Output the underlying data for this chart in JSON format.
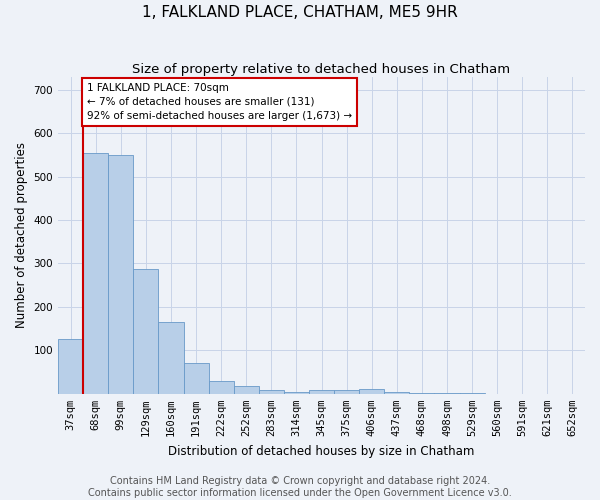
{
  "title": "1, FALKLAND PLACE, CHATHAM, ME5 9HR",
  "subtitle": "Size of property relative to detached houses in Chatham",
  "xlabel": "Distribution of detached houses by size in Chatham",
  "ylabel": "Number of detached properties",
  "categories": [
    "37sqm",
    "68sqm",
    "99sqm",
    "129sqm",
    "160sqm",
    "191sqm",
    "222sqm",
    "252sqm",
    "283sqm",
    "314sqm",
    "345sqm",
    "375sqm",
    "406sqm",
    "437sqm",
    "468sqm",
    "498sqm",
    "529sqm",
    "560sqm",
    "591sqm",
    "621sqm",
    "652sqm"
  ],
  "values": [
    127,
    555,
    550,
    287,
    165,
    70,
    30,
    18,
    8,
    4,
    8,
    8,
    10,
    5,
    2,
    1,
    1,
    0,
    0,
    0,
    0
  ],
  "bar_color": "#b8cfe8",
  "bar_edge_color": "#6899c8",
  "grid_color": "#c8d4e8",
  "background_color": "#eef2f8",
  "vline_color": "#cc0000",
  "vline_x_index": 1,
  "annotation_text": "1 FALKLAND PLACE: 70sqm\n← 7% of detached houses are smaller (131)\n92% of semi-detached houses are larger (1,673) →",
  "annotation_box_color": "#ffffff",
  "annotation_box_edge_color": "#cc0000",
  "footer_line1": "Contains HM Land Registry data © Crown copyright and database right 2024.",
  "footer_line2": "Contains public sector information licensed under the Open Government Licence v3.0.",
  "ylim": [
    0,
    730
  ],
  "yticks": [
    100,
    200,
    300,
    400,
    500,
    600,
    700
  ],
  "title_fontsize": 11,
  "subtitle_fontsize": 9.5,
  "axis_label_fontsize": 8.5,
  "tick_fontsize": 7.5,
  "annotation_fontsize": 7.5,
  "footer_fontsize": 7
}
